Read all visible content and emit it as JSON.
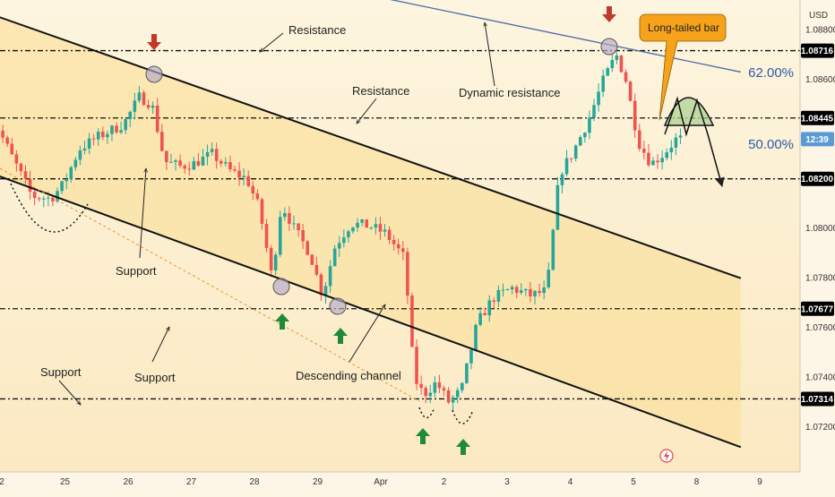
{
  "chart_data": {
    "type": "candlestick",
    "currency": "USD",
    "ylim": [
      1.0702,
      1.0892
    ],
    "xlim": [
      -0.25,
      11.9
    ],
    "x_ticks": [
      {
        "label": "2",
        "x": 0
      },
      {
        "label": "25",
        "x": 1
      },
      {
        "label": "26",
        "x": 2
      },
      {
        "label": "27",
        "x": 3
      },
      {
        "label": "28",
        "x": 4
      },
      {
        "label": "29",
        "x": 5
      },
      {
        "label": "Apr",
        "x": 6
      },
      {
        "label": "2",
        "x": 7
      },
      {
        "label": "3",
        "x": 8
      },
      {
        "label": "4",
        "x": 9
      },
      {
        "label": "5",
        "x": 10
      },
      {
        "label": "8",
        "x": 11
      },
      {
        "label": "9",
        "x": 12
      }
    ],
    "y_ticks": [
      "1.08800",
      "1.08600",
      "1.08000",
      "1.07800",
      "1.07600",
      "1.07400",
      "1.07200"
    ],
    "price_tags": [
      {
        "label": "1.08716",
        "value": 1.08716,
        "color": "#000000",
        "text_color": "#ffffff"
      },
      {
        "label": "1.08445",
        "value": 1.08445,
        "color": "#000000",
        "text_color": "#ffffff"
      },
      {
        "label": "1.08200",
        "value": 1.082,
        "color": "#000000",
        "text_color": "#ffffff"
      },
      {
        "label": "1.07677",
        "value": 1.07677,
        "color": "#000000",
        "text_color": "#ffffff"
      },
      {
        "label": "1.07314",
        "value": 1.07314,
        "color": "#000000",
        "text_color": "#ffffff"
      },
      {
        "label": "12:39",
        "value": 1.0836,
        "color": "#5b9bd5",
        "text_color": "#ffffff"
      }
    ],
    "fib_levels": [
      {
        "label": "62.00%",
        "value": 1.0862
      },
      {
        "label": "50.00%",
        "value": 1.0834
      }
    ],
    "horizontal_levels": [
      1.08716,
      1.08445,
      1.082,
      1.07677,
      1.07314
    ],
    "channel_upper": [
      [
        -0.25,
        1.0887
      ],
      [
        11.7,
        1.078
      ]
    ],
    "channel_lower": [
      [
        -0.25,
        1.0823
      ],
      [
        11.7,
        1.0712
      ]
    ],
    "dynamic_resistance": [
      [
        6.0,
        1.0893
      ],
      [
        11.7,
        1.0863
      ]
    ],
    "ohlc_anchors": [
      [
        -0.2,
        1.0862
      ],
      [
        0.0,
        1.0841
      ],
      [
        0.25,
        1.0828
      ],
      [
        0.55,
        1.0813
      ],
      [
        0.85,
        1.0812
      ],
      [
        1.05,
        1.0818
      ],
      [
        1.3,
        1.0832
      ],
      [
        1.6,
        1.0837
      ],
      [
        2.0,
        1.0842
      ],
      [
        2.25,
        1.0853
      ],
      [
        2.45,
        1.085
      ],
      [
        2.65,
        1.0827
      ],
      [
        2.9,
        1.0825
      ],
      [
        3.1,
        1.0826
      ],
      [
        3.4,
        1.083
      ],
      [
        3.7,
        1.0823
      ],
      [
        3.95,
        1.082
      ],
      [
        4.15,
        1.0808
      ],
      [
        4.35,
        1.078
      ],
      [
        4.5,
        1.081
      ],
      [
        4.7,
        1.08
      ],
      [
        4.95,
        1.079
      ],
      [
        5.15,
        1.0773
      ],
      [
        5.35,
        1.0793
      ],
      [
        5.6,
        1.0802
      ],
      [
        5.9,
        1.0801
      ],
      [
        6.15,
        1.0798
      ],
      [
        6.45,
        1.0788
      ],
      [
        6.6,
        1.074
      ],
      [
        6.75,
        1.0733
      ],
      [
        6.95,
        1.0738
      ],
      [
        7.15,
        1.073
      ],
      [
        7.35,
        1.0735
      ],
      [
        7.6,
        1.0762
      ],
      [
        7.85,
        1.0772
      ],
      [
        8.15,
        1.0776
      ],
      [
        8.45,
        1.0773
      ],
      [
        8.7,
        1.0775
      ],
      [
        8.9,
        1.0822
      ],
      [
        9.1,
        1.083
      ],
      [
        9.35,
        1.0843
      ],
      [
        9.6,
        1.086
      ],
      [
        9.8,
        1.087
      ],
      [
        9.95,
        1.086
      ],
      [
        10.15,
        1.0835
      ],
      [
        10.35,
        1.0826
      ],
      [
        10.55,
        1.083
      ],
      [
        10.75,
        1.0836
      ]
    ],
    "annotations": [
      {
        "text": "Resistance"
      },
      {
        "text": "Resistance"
      },
      {
        "text": "Dynamic resistance"
      },
      {
        "text": "Support"
      },
      {
        "text": "Support"
      },
      {
        "text": "Support"
      },
      {
        "text": "Descending channel"
      },
      {
        "text": "Long-tailed bar"
      }
    ]
  },
  "colors": {
    "background": "#fdf6e3",
    "channel_fill": "#fbe3a8",
    "bull": "#26a69a",
    "bear": "#ef5350",
    "down_arrow": "#c0392b",
    "up_arrow": "#1e8a3a",
    "callout": "#f7a21b",
    "fib_text": "#2e5aa8",
    "dynamic_line": "#4b6ca8"
  }
}
